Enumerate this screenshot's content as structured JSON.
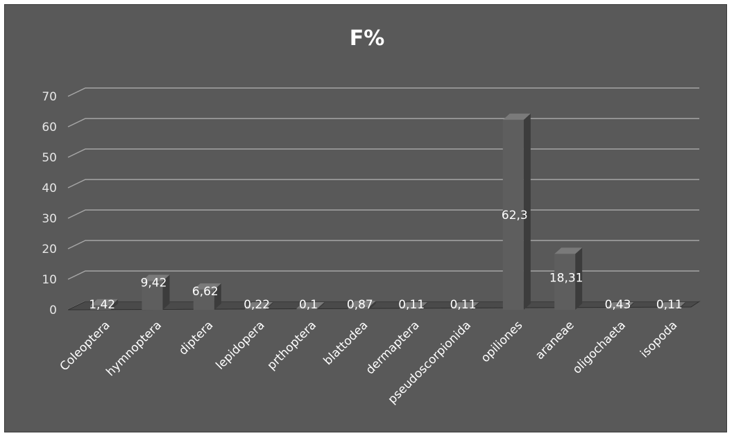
{
  "chart_data": {
    "type": "bar",
    "title": "F%",
    "categories": [
      "Coleoptera",
      "hymnoptera",
      "diptera",
      "lepidopera",
      "prthoptera",
      "blattodea",
      "dermaptera",
      "pseudoscorpionida",
      "opiliones",
      "araneae",
      "oligochaeta",
      "isopoda"
    ],
    "values": [
      1.42,
      9.42,
      6.62,
      0.22,
      0.1,
      0.87,
      0.11,
      0.11,
      62.3,
      18.31,
      0.43,
      0.11
    ],
    "data_labels": [
      "1,42",
      "9,42",
      "6,62",
      "0,22",
      "0,1",
      "0,87",
      "0,11",
      "0,11",
      "62,3",
      "18,31",
      "0,43",
      "0,11"
    ],
    "y_ticks": [
      "0",
      "10",
      "20",
      "30",
      "40",
      "50",
      "60",
      "70"
    ],
    "ylim": [
      0,
      70
    ],
    "grid": true,
    "legend": "none",
    "style": "3d-column",
    "colors": {
      "background": "#595959",
      "bar_front": "#5e5e5e",
      "bar_side": "#3c3c3c",
      "bar_top": "#7a7a7a",
      "grid": "#a6a6a6",
      "text": "#ffffff"
    }
  }
}
